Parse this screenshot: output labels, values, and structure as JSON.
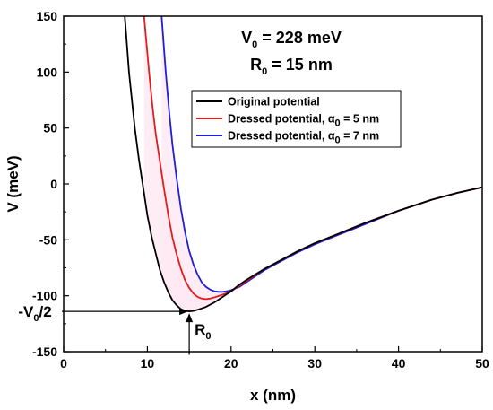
{
  "chart_data": {
    "type": "line",
    "xlabel": "x (nm)",
    "ylabel": "V (meV)",
    "xlim": [
      0,
      50
    ],
    "ylim": [
      -150,
      150
    ],
    "x_ticks": [
      0,
      10,
      20,
      30,
      40,
      50
    ],
    "y_ticks": [
      -150,
      -100,
      -50,
      0,
      50,
      100,
      150
    ],
    "grid": false,
    "legend_position": "upper-right",
    "parameters": {
      "v0": {
        "main": "V",
        "sub": "0",
        "rest": " = 228 meV"
      },
      "r0": {
        "main": "R",
        "sub": "0",
        "rest": " = 15 nm"
      }
    },
    "legend": [
      {
        "pre": "Original potential",
        "greek": "",
        "post": "",
        "color": "#000000"
      },
      {
        "pre": "Dressed potential, ",
        "greek": "α",
        "sub": "0",
        "post": " = 5 nm",
        "color": "#e41a1c"
      },
      {
        "pre": "Dressed potential, ",
        "greek": "α",
        "sub": "0",
        "post": " = 7 nm",
        "color": "#1f1fd6"
      }
    ],
    "series": [
      {
        "name": "Original potential",
        "color": "#000000",
        "x": [
          7.3,
          7.8,
          8.5,
          9.0,
          9.5,
          10.0,
          10.5,
          11.0,
          11.5,
          12.0,
          12.5,
          13.0,
          13.5,
          14.0,
          14.5,
          15.0,
          15.5,
          16.0,
          17.0,
          18.0,
          19.0,
          20.0,
          21.0,
          22.0,
          24.0,
          26.0,
          28.0,
          30.0,
          33.0,
          36.0,
          40.0,
          44.0,
          47.0,
          50.0
        ],
        "y": [
          150,
          100,
          50,
          21,
          -3,
          -28,
          -47,
          -62,
          -77,
          -88,
          -97,
          -104,
          -108.5,
          -112,
          -113.5,
          -114,
          -113.6,
          -112.5,
          -110,
          -106,
          -101,
          -96,
          -90,
          -85,
          -76,
          -68,
          -60,
          -53,
          -44,
          -35,
          -24,
          -14,
          -8,
          -3
        ]
      },
      {
        "name": "Dressed potential, α0 = 5 nm",
        "color": "#e41a1c",
        "x": [
          9.6,
          10.2,
          10.6,
          11.0,
          11.5,
          12.0,
          12.5,
          13.0,
          13.5,
          14.0,
          14.5,
          15.0,
          15.5,
          16.0,
          16.5,
          17.0,
          17.5,
          18.0,
          19.0,
          20.0,
          21.0,
          22.0,
          24.0,
          26.0,
          28.0,
          30.0,
          33.0,
          36.0,
          40.0,
          44.0,
          47.0,
          50.0
        ],
        "y": [
          150,
          100,
          70,
          45,
          20,
          -5,
          -28,
          -48,
          -63,
          -76,
          -86,
          -93,
          -98,
          -101,
          -102.5,
          -103,
          -102.5,
          -101.5,
          -99,
          -96,
          -91,
          -86,
          -76,
          -68,
          -60,
          -53,
          -44,
          -35,
          -24,
          -14,
          -8,
          -3
        ]
      },
      {
        "name": "Dressed potential, α0 = 7 nm",
        "color": "#1f1fd6",
        "x": [
          11.7,
          12.2,
          12.6,
          13.0,
          13.5,
          14.0,
          14.5,
          15.0,
          15.5,
          16.0,
          16.5,
          17.0,
          17.5,
          18.0,
          18.5,
          19.0,
          19.5,
          20.0,
          21.0,
          22.0,
          24.0,
          26.0,
          28.0,
          30.0,
          33.0,
          36.0,
          40.0,
          44.0,
          47.0,
          50.0
        ],
        "y": [
          150,
          100,
          65,
          35,
          5,
          -22,
          -43,
          -60,
          -72,
          -81,
          -88,
          -92,
          -94.5,
          -96,
          -96.5,
          -96.5,
          -96,
          -95,
          -92,
          -87,
          -77,
          -69,
          -61,
          -54,
          -45,
          -36,
          -24,
          -14,
          -8,
          -3
        ]
      }
    ],
    "annotations": {
      "left_arrow": {
        "label_main": "-V",
        "label_sub": "0",
        "label_rest": "/2",
        "x_from": 0,
        "x_to": 15,
        "y": -114
      },
      "up_arrow": {
        "label_main": "R",
        "label_sub": "0",
        "x": 15,
        "y_from": -148,
        "y_to": -114
      }
    }
  },
  "colors": {
    "original": "#000000",
    "alpha5": "#e41a1c",
    "alpha7": "#1f1fd6",
    "fill_shade": "#ffe8f4"
  }
}
